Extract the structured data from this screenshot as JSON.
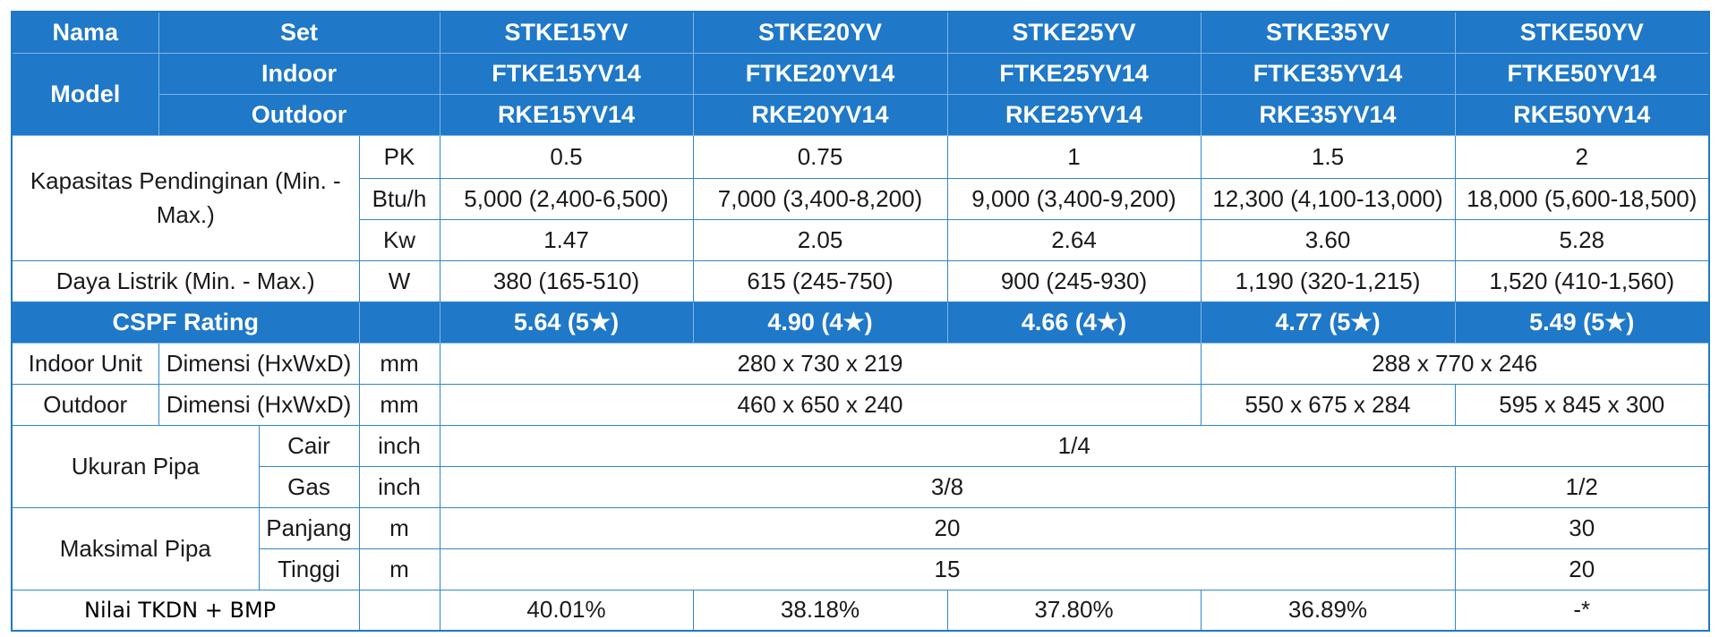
{
  "header": {
    "nama_label": "Nama",
    "set_label": "Set",
    "model_label": "Model",
    "indoor_label": "Indoor",
    "outdoor_label": "Outdoor",
    "set_values": [
      "STKE15YV",
      "STKE20YV",
      "STKE25YV",
      "STKE35YV",
      "STKE50YV"
    ],
    "indoor_values": [
      "FTKE15YV14",
      "FTKE20YV14",
      "FTKE25YV14",
      "FTKE35YV14",
      "FTKE50YV14"
    ],
    "outdoor_values": [
      "RKE15YV14",
      "RKE20YV14",
      "RKE25YV14",
      "RKE35YV14",
      "RKE50YV14"
    ]
  },
  "capacity": {
    "label": "Kapasitas Pendinginan (Min. - Max.)",
    "pk_unit": "PK",
    "pk_values": [
      "0.5",
      "0.75",
      "1",
      "1.5",
      "2"
    ],
    "btu_unit": "Btu/h",
    "btu_values": [
      "5,000 (2,400-6,500)",
      "7,000 (3,400-8,200)",
      "9,000 (3,400-9,200)",
      "12,300 (4,100-13,000)",
      "18,000 (5,600-18,500)"
    ],
    "kw_unit": "Kw",
    "kw_values": [
      "1.47",
      "2.05",
      "2.64",
      "3.60",
      "5.28"
    ]
  },
  "power": {
    "label": "Daya Listrik (Min. - Max.)",
    "unit": "W",
    "values": [
      "380 (165-510)",
      "615 (245-750)",
      "900 (245-930)",
      "1,190 (320-1,215)",
      "1,520 (410-1,560)"
    ]
  },
  "cspf": {
    "label": "CSPF Rating",
    "values": [
      "5.64 (5★)",
      "4.90 (4★)",
      "4.66 (4★)",
      "4.77 (5★)",
      "5.49 (5★)"
    ]
  },
  "indoor_unit": {
    "label": "Indoor Unit",
    "dim_label": "Dimensi (HxWxD)",
    "unit": "mm",
    "value_a": "280 x 730 x 219",
    "value_b": "288 x 770 x 246"
  },
  "outdoor_unit": {
    "label": "Outdoor",
    "dim_label": "Dimensi (HxWxD)",
    "unit": "mm",
    "value_a": "460 x 650 x 240",
    "value_b": "550 x 675 x 284",
    "value_c": "595 x 845 x 300"
  },
  "pipe_size": {
    "label": "Ukuran Pipa",
    "cair_label": "Cair",
    "cair_unit": "inch",
    "cair_value": "1/4",
    "gas_label": "Gas",
    "gas_unit": "inch",
    "gas_value_a": "3/8",
    "gas_value_b": "1/2"
  },
  "pipe_max": {
    "label": "Maksimal Pipa",
    "panjang_label": "Panjang",
    "panjang_unit": "m",
    "panjang_value_a": "20",
    "panjang_value_b": "30",
    "tinggi_label": "Tinggi",
    "tinggi_unit": "m",
    "tinggi_value_a": "15",
    "tinggi_value_b": "20"
  },
  "tkdn": {
    "label": "Nilai TKDN + BMP",
    "values": [
      "40.01%",
      "38.18%",
      "37.80%",
      "36.89%",
      "-*"
    ]
  },
  "colors": {
    "header_blue": "#1f78c8",
    "border_blue": "#2f86d0"
  }
}
